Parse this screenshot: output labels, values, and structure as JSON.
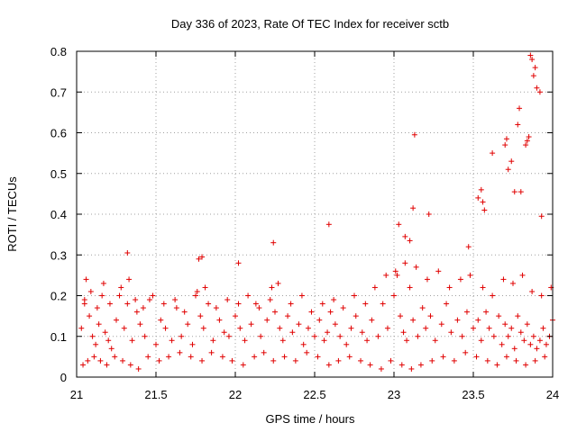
{
  "chart_data": {
    "type": "scatter",
    "title": "Day 336 of 2023, Rate Of TEC Index for receiver sctb",
    "xlabel": "GPS time / hours",
    "ylabel": "ROTI / TECUs",
    "xlim": [
      21,
      24
    ],
    "ylim": [
      0,
      0.8
    ],
    "xticks": [
      "21",
      "21.5",
      "22",
      "22.5",
      "23",
      "23.5",
      "24"
    ],
    "yticks": [
      "0",
      "0.1",
      "0.2",
      "0.3",
      "0.4",
      "0.5",
      "0.6",
      "0.7",
      "0.8"
    ],
    "grid": true,
    "marker": "+",
    "marker_color": "#e00000",
    "series": [
      {
        "name": "ROTI",
        "x": [
          21.03,
          21.05,
          21.06,
          21.08,
          21.1,
          21.12,
          21.14,
          21.16,
          21.18,
          21.2,
          21.22,
          21.25,
          21.28,
          21.3,
          21.32,
          21.35,
          21.38,
          21.4,
          21.43,
          21.46,
          21.5,
          21.53,
          21.56,
          21.6,
          21.63,
          21.66,
          21.7,
          21.73,
          21.76,
          21.78,
          21.8,
          21.83,
          21.86,
          21.9,
          21.93,
          21.96,
          22.0,
          22.03,
          22.06,
          22.1,
          22.13,
          22.16,
          22.2,
          22.23,
          22.25,
          22.28,
          22.3,
          22.33,
          22.36,
          22.4,
          22.43,
          22.46,
          22.5,
          22.53,
          22.56,
          22.58,
          22.6,
          22.63,
          22.66,
          22.7,
          22.73,
          22.76,
          22.8,
          22.83,
          22.86,
          22.9,
          22.93,
          22.96,
          23.0,
          23.02,
          23.04,
          23.06,
          23.08,
          23.1,
          23.12,
          23.15,
          23.18,
          23.2,
          23.23,
          23.26,
          23.3,
          23.33,
          23.36,
          23.4,
          23.43,
          23.46,
          23.5,
          23.53,
          23.55,
          23.58,
          23.6,
          23.63,
          23.66,
          23.68,
          23.7,
          23.72,
          23.74,
          23.76,
          23.78,
          23.8,
          23.82,
          23.84,
          23.86,
          23.88,
          23.9,
          23.92,
          23.94,
          23.96,
          23.98,
          24.0,
          21.04,
          21.07,
          21.11,
          21.15,
          21.19,
          21.24,
          21.29,
          21.34,
          21.39,
          21.45,
          21.52,
          21.58,
          21.65,
          21.72,
          21.79,
          21.85,
          21.92,
          21.98,
          22.05,
          22.12,
          22.18,
          22.24,
          22.31,
          22.38,
          22.45,
          22.52,
          22.59,
          22.65,
          22.72,
          22.79,
          22.85,
          22.92,
          22.98,
          23.05,
          23.11,
          23.17,
          23.24,
          23.31,
          23.38,
          23.45,
          23.52,
          23.59,
          23.65,
          23.71,
          23.77,
          23.83,
          23.89,
          23.95,
          21.05,
          21.09,
          21.13,
          21.17,
          21.21,
          21.27,
          21.33,
          21.37,
          21.42,
          21.48,
          21.55,
          21.62,
          21.68,
          21.75,
          21.81,
          21.88,
          21.95,
          22.02,
          22.08,
          22.15,
          22.22,
          22.27,
          22.35,
          22.42,
          22.48,
          22.55,
          22.62,
          22.68,
          22.75,
          22.82,
          22.88,
          22.95,
          23.01,
          23.07,
          23.14,
          23.21,
          23.28,
          23.35,
          23.42,
          23.48,
          23.56,
          23.62,
          23.69,
          23.75,
          23.81,
          23.87,
          23.93,
          23.99,
          21.32,
          21.77,
          21.79,
          22.02,
          22.24,
          22.59,
          23.03,
          23.07,
          23.1,
          23.12,
          23.13,
          23.22,
          23.47,
          23.53,
          23.55,
          23.56,
          23.57,
          23.62,
          23.7,
          23.71,
          23.72,
          23.74,
          23.76,
          23.78,
          23.79,
          23.8,
          23.83,
          23.84,
          23.85,
          23.86,
          23.87,
          23.88,
          23.89,
          23.9,
          23.92,
          23.93
        ],
        "y": [
          0.12,
          0.18,
          0.24,
          0.15,
          0.1,
          0.08,
          0.13,
          0.2,
          0.11,
          0.09,
          0.07,
          0.14,
          0.22,
          0.12,
          0.18,
          0.09,
          0.16,
          0.13,
          0.1,
          0.19,
          0.08,
          0.14,
          0.12,
          0.09,
          0.17,
          0.1,
          0.13,
          0.08,
          0.21,
          0.15,
          0.12,
          0.18,
          0.09,
          0.14,
          0.11,
          0.1,
          0.15,
          0.12,
          0.09,
          0.13,
          0.18,
          0.1,
          0.14,
          0.22,
          0.16,
          0.12,
          0.09,
          0.15,
          0.11,
          0.13,
          0.08,
          0.12,
          0.1,
          0.14,
          0.09,
          0.11,
          0.16,
          0.13,
          0.1,
          0.08,
          0.12,
          0.15,
          0.11,
          0.09,
          0.14,
          0.1,
          0.18,
          0.12,
          0.2,
          0.25,
          0.15,
          0.11,
          0.09,
          0.22,
          0.14,
          0.1,
          0.17,
          0.12,
          0.15,
          0.09,
          0.13,
          0.18,
          0.11,
          0.14,
          0.1,
          0.16,
          0.12,
          0.14,
          0.09,
          0.16,
          0.12,
          0.1,
          0.15,
          0.08,
          0.13,
          0.1,
          0.12,
          0.07,
          0.15,
          0.11,
          0.09,
          0.13,
          0.08,
          0.1,
          0.07,
          0.09,
          0.12,
          0.08,
          0.1,
          0.14,
          0.03,
          0.04,
          0.05,
          0.04,
          0.03,
          0.05,
          0.04,
          0.03,
          0.02,
          0.05,
          0.04,
          0.05,
          0.06,
          0.05,
          0.04,
          0.06,
          0.05,
          0.04,
          0.03,
          0.05,
          0.06,
          0.04,
          0.05,
          0.04,
          0.06,
          0.05,
          0.03,
          0.04,
          0.05,
          0.04,
          0.03,
          0.02,
          0.04,
          0.03,
          0.02,
          0.03,
          0.04,
          0.05,
          0.04,
          0.06,
          0.05,
          0.04,
          0.03,
          0.05,
          0.04,
          0.03,
          0.04,
          0.05,
          0.19,
          0.21,
          0.17,
          0.23,
          0.18,
          0.2,
          0.24,
          0.19,
          0.17,
          0.2,
          0.18,
          0.19,
          0.16,
          0.2,
          0.22,
          0.17,
          0.19,
          0.18,
          0.2,
          0.17,
          0.19,
          0.23,
          0.18,
          0.2,
          0.16,
          0.18,
          0.19,
          0.17,
          0.2,
          0.18,
          0.22,
          0.25,
          0.26,
          0.28,
          0.27,
          0.24,
          0.26,
          0.22,
          0.24,
          0.25,
          0.22,
          0.2,
          0.24,
          0.23,
          0.25,
          0.21,
          0.2,
          0.22,
          0.305,
          0.29,
          0.295,
          0.28,
          0.33,
          0.375,
          0.375,
          0.345,
          0.335,
          0.415,
          0.595,
          0.4,
          0.32,
          0.44,
          0.46,
          0.43,
          0.41,
          0.55,
          0.57,
          0.585,
          0.51,
          0.53,
          0.455,
          0.62,
          0.66,
          0.455,
          0.57,
          0.58,
          0.59,
          0.79,
          0.78,
          0.74,
          0.76,
          0.71,
          0.7,
          0.395
        ]
      }
    ]
  }
}
